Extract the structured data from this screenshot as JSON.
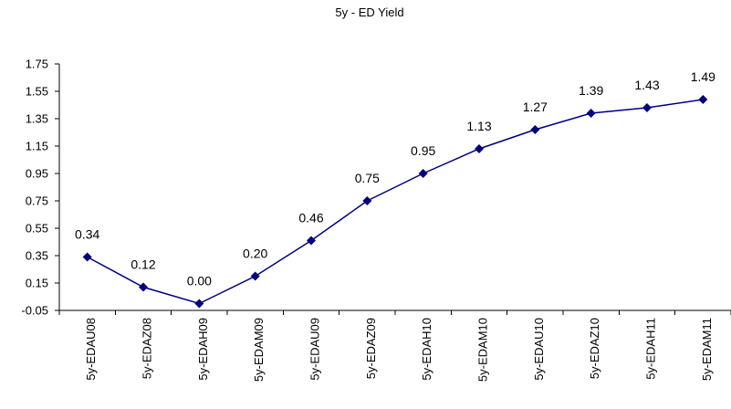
{
  "chart_data": {
    "type": "line",
    "title": "5y - ED Yield",
    "xlabel": "",
    "ylabel": "",
    "categories": [
      "5y-EDAU08",
      "5y-EDAZ08",
      "5y-EDAH09",
      "5y-EDAM09",
      "5y-EDAU09",
      "5y-EDAZ09",
      "5y-EDAH10",
      "5y-EDAM10",
      "5y-EDAU10",
      "5y-EDAZ10",
      "5y-EDAH11",
      "5y-EDAM11"
    ],
    "values": [
      0.34,
      0.12,
      0.0,
      0.2,
      0.46,
      0.75,
      0.95,
      1.13,
      1.27,
      1.39,
      1.43,
      1.49
    ],
    "data_labels": [
      "0.34",
      "0.12",
      "0.00",
      "0.20",
      "0.46",
      "0.75",
      "0.95",
      "1.13",
      "1.27",
      "1.39",
      "1.43",
      "1.49"
    ],
    "ylim": [
      -0.05,
      1.75
    ],
    "yticks": [
      -0.05,
      0.15,
      0.35,
      0.55,
      0.75,
      0.95,
      1.15,
      1.35,
      1.55,
      1.75
    ],
    "ytick_labels": [
      "-0.05",
      "0.15",
      "0.35",
      "0.55",
      "0.75",
      "0.95",
      "1.15",
      "1.35",
      "1.55",
      "1.75"
    ],
    "grid": false,
    "legend": "none",
    "colors": {
      "series": "#000080",
      "axis": "#000000",
      "text": "#000000"
    }
  }
}
